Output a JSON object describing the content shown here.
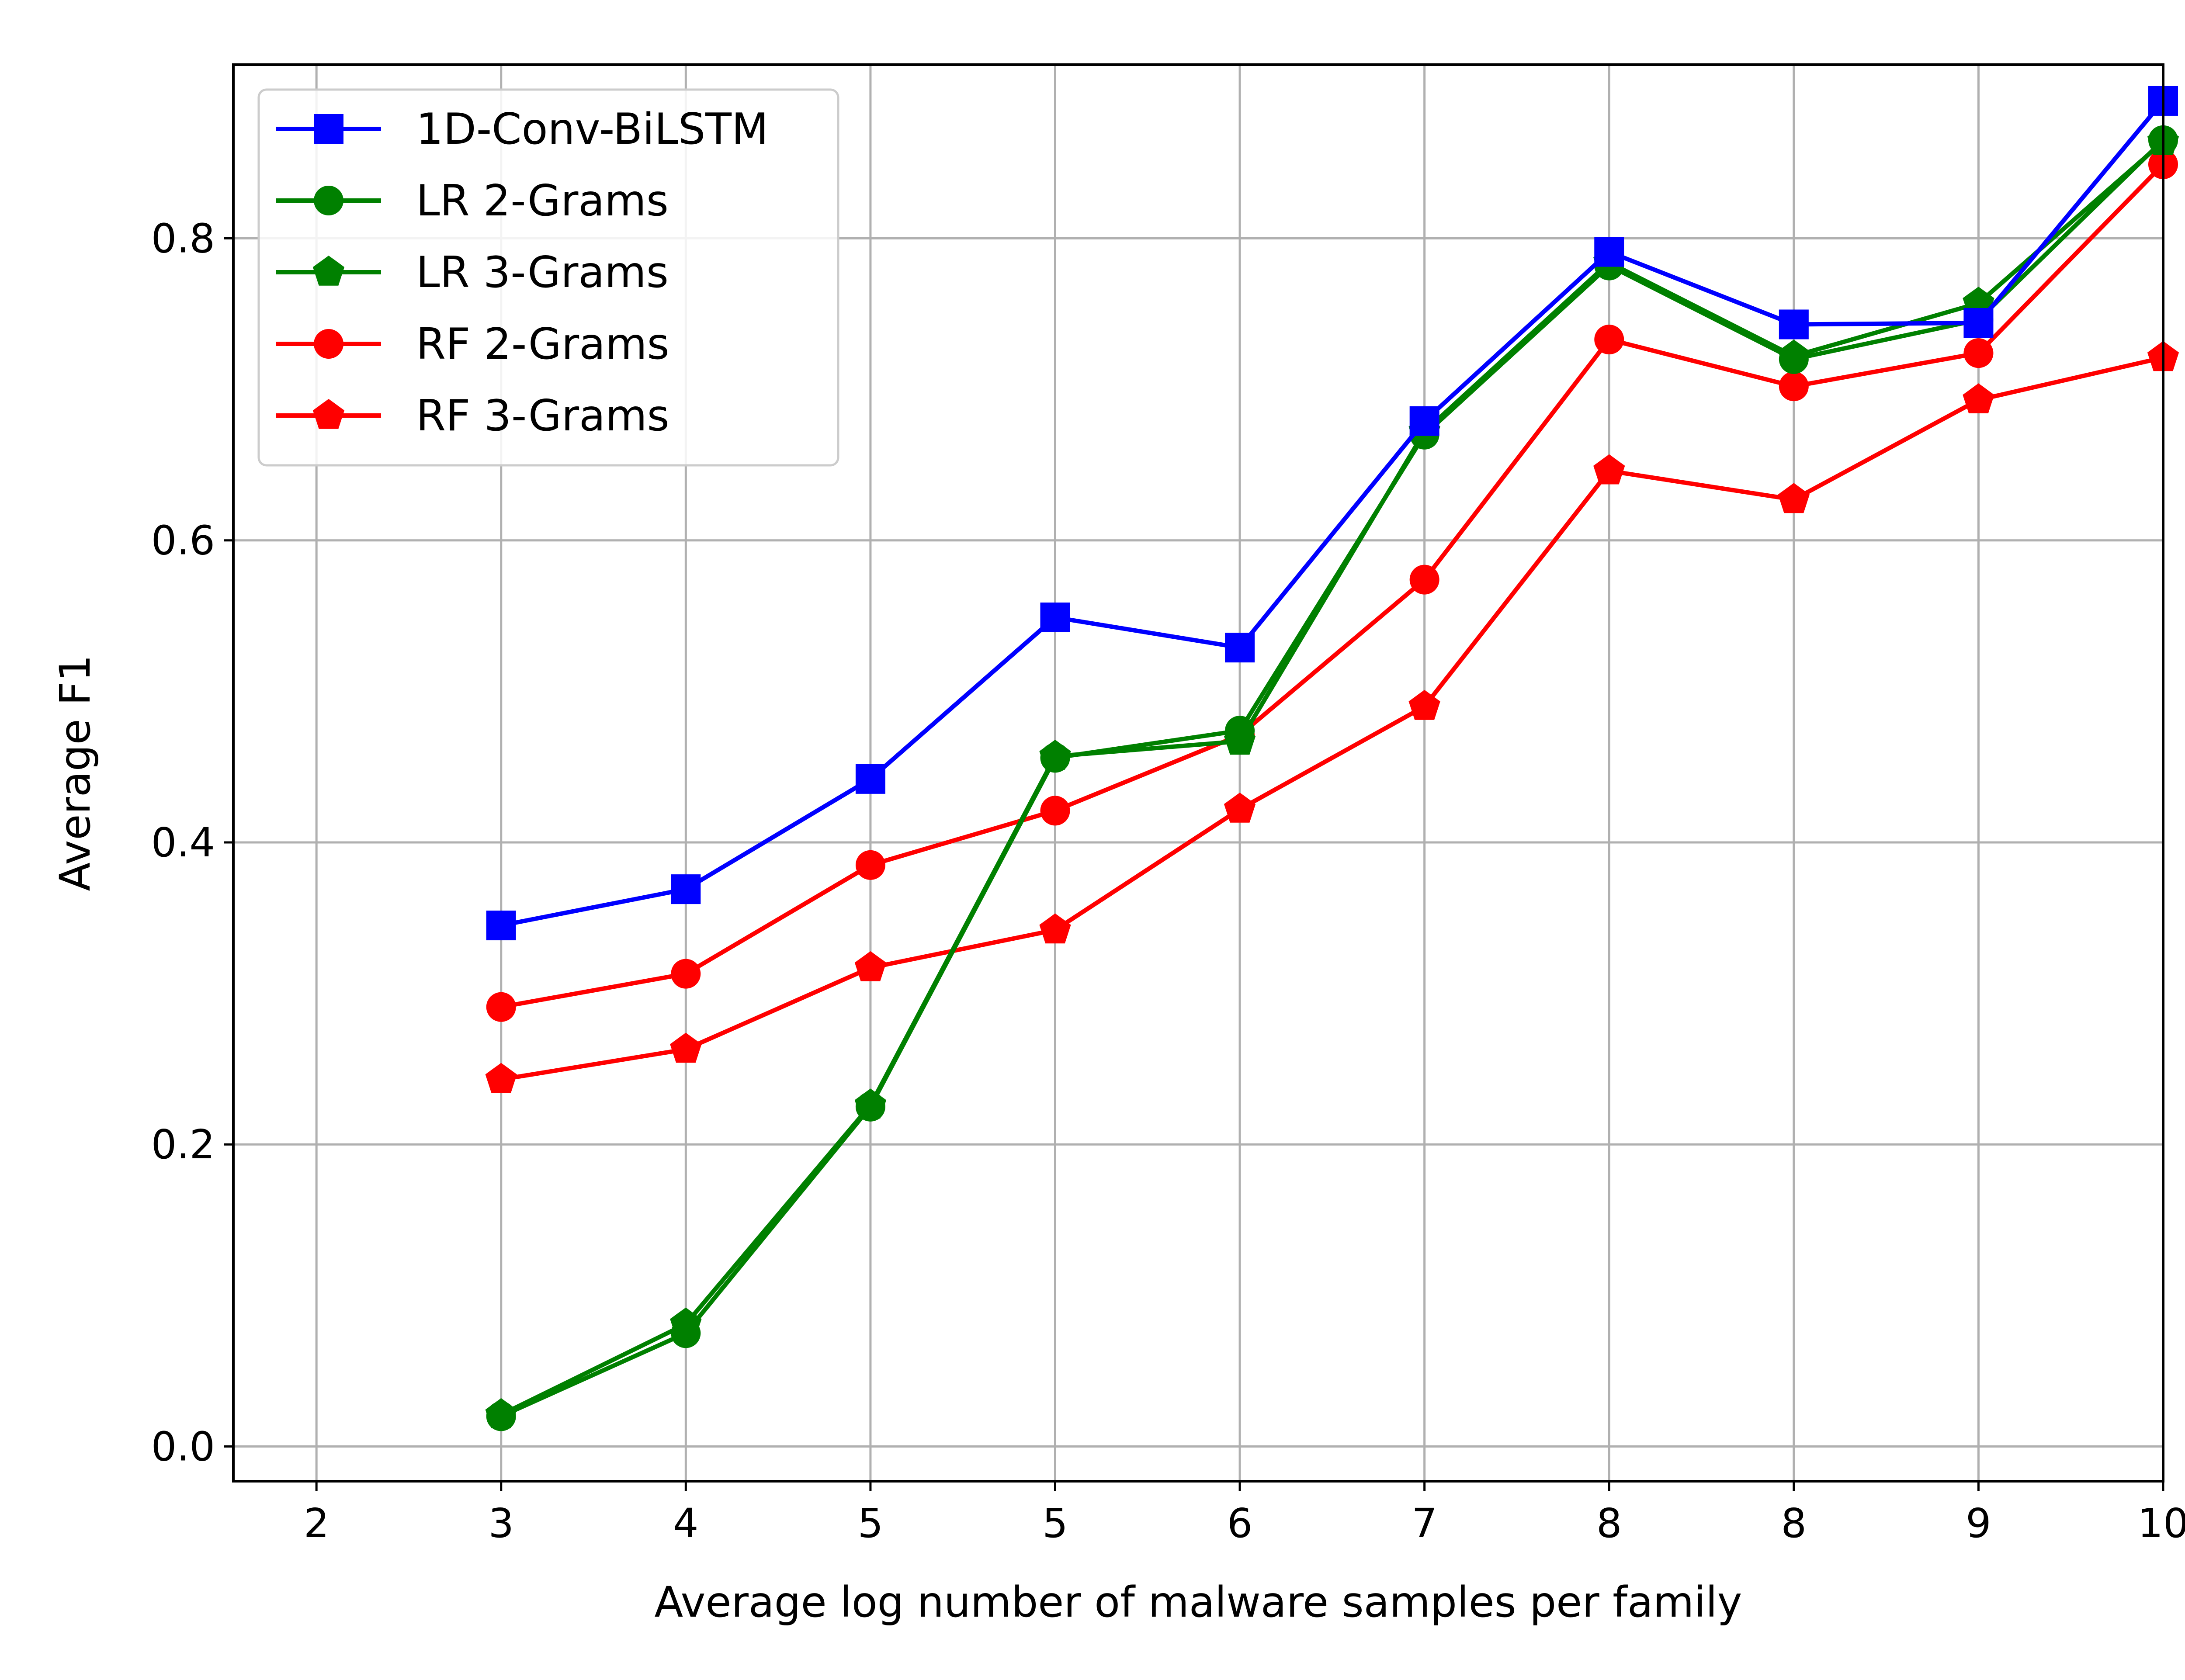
{
  "chart_data": {
    "type": "line",
    "xlabel": "Average log number of malware samples per family",
    "ylabel": "Average F1",
    "x": [
      2,
      3,
      4,
      5,
      6,
      7,
      8,
      9,
      10,
      11
    ],
    "x_tick_labels": [
      "2",
      "3",
      "4",
      "5",
      "5",
      "6",
      "7",
      "8",
      "8",
      "9",
      "10"
    ],
    "xlim": [
      0.55,
      11.0
    ],
    "ylim": [
      -0.023,
      0.915
    ],
    "y_ticks": [
      0.0,
      0.2,
      0.4,
      0.6,
      0.8
    ],
    "y_tick_labels": [
      "0.0",
      "0.2",
      "0.4",
      "0.6",
      "0.8"
    ],
    "grid": true,
    "legend_position": "top-left",
    "series": [
      {
        "name": "1D-Conv-BiLSTM",
        "color": "#0000ff",
        "marker": "square",
        "values": [
          0.345,
          0.369,
          0.442,
          0.549,
          0.529,
          0.679,
          0.791,
          0.743,
          0.744,
          0.891
        ]
      },
      {
        "name": "LR 2-Grams",
        "color": "#008000",
        "marker": "circle",
        "values": [
          0.02,
          0.075,
          0.225,
          0.456,
          0.474,
          0.67,
          0.782,
          0.72,
          0.746,
          0.865
        ]
      },
      {
        "name": "LR 3-Grams",
        "color": "#008000",
        "marker": "pentagon",
        "values": [
          0.021,
          0.081,
          0.226,
          0.457,
          0.467,
          0.672,
          0.784,
          0.722,
          0.757,
          0.864
        ]
      },
      {
        "name": "RF 2-Grams",
        "color": "#ff0000",
        "marker": "circle",
        "values": [
          0.291,
          0.313,
          0.385,
          0.421,
          0.471,
          0.574,
          0.733,
          0.702,
          0.724,
          0.849
        ]
      },
      {
        "name": "RF 3-Grams",
        "color": "#ff0000",
        "marker": "pentagon",
        "values": [
          0.243,
          0.263,
          0.317,
          0.342,
          0.422,
          0.49,
          0.646,
          0.627,
          0.693,
          0.721
        ]
      }
    ]
  }
}
